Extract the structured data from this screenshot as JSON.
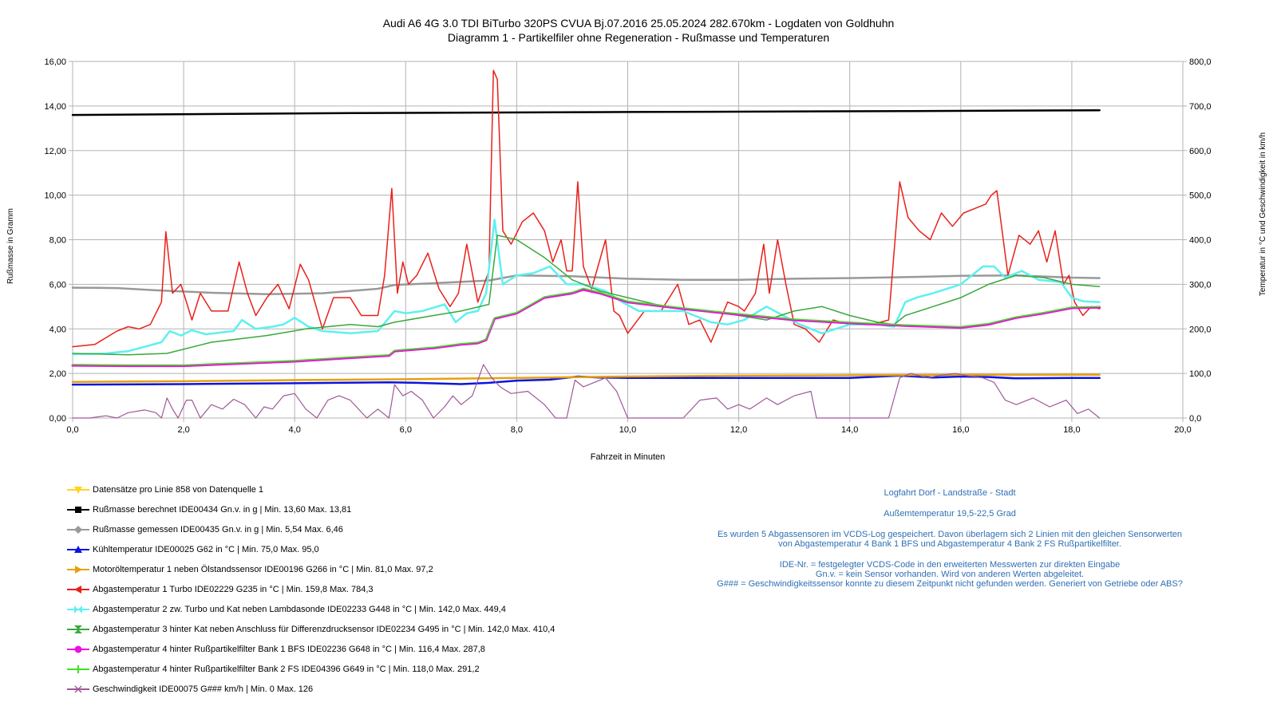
{
  "title": {
    "line1": "Audi A6 4G 3.0 TDI BiTurbo 320PS CVUA Bj.07.2016 25.05.2024 282.670km - Logdaten von Goldhuhn",
    "line2": "Diagramm 1 - Partikelfiler ohne Regeneration - Rußmasse und Temperaturen"
  },
  "legend": [
    {
      "label": "Datensätze pro Linie  858 von Datenquelle 1",
      "color": "#ffd320",
      "marker": "triangle-down"
    },
    {
      "label": "Rußmasse berechnet IDE00434 Gn.v. in g | Min.  13,60 Max.  13,81",
      "color": "#000000",
      "marker": "square"
    },
    {
      "label": "Rußmasse gemessen IDE00435 Gn.v. in g | Min.  5,54 Max.  6,46",
      "color": "#999999",
      "marker": "diamond"
    },
    {
      "label": "Kühltemperatur IDE00025 G62 in °C | Min.  75,0 Max.  95,0",
      "color": "#0a14e0",
      "marker": "triangle-up"
    },
    {
      "label": "Motoröltemperatur 1 neben Ölstandssensor IDE00196 G266 in °C | Min.  81,0 Max.  97,2",
      "color": "#e8a010",
      "marker": "triangle-right"
    },
    {
      "label": "Abgastemperatur 1 Turbo IDE02229 G235 in °C | Min.  159,8 Max.  784,3",
      "color": "#e8201a",
      "marker": "triangle-left"
    },
    {
      "label": "Abgastemperatur 2 zw. Turbo und Kat neben Lambdasonde IDE02233 G448 in °C | Min.  142,0 Max.  449,4",
      "color": "#5ef0f0",
      "marker": "bowtie"
    },
    {
      "label": "Abgastemperatur 3 hinter Kat neben Anschluss für Differenzdrucksensor IDE02234 G495 in °C | Min.  142,0 Max.  410,4",
      "color": "#3aa83a",
      "marker": "hourglass"
    },
    {
      "label": "Abgastemperatur 4 hinter Rußpartikelfilter Bank 1 BFS IDE02236 G648 in °C | Min.  116,4 Max.  287,8",
      "color": "#ee10e0",
      "marker": "circle"
    },
    {
      "label": "Abgastemperatur 4 hinter Rußpartikelfilter Bank 2 FS IDE04396 G649 in °C | Min.  118,0 Max.  291,2",
      "color": "#40e020",
      "marker": "plus"
    },
    {
      "label": "Geschwindigkeit IDE00075 G### km/h | Min.  0 Max.  126",
      "color": "#a05898",
      "marker": "cross"
    }
  ],
  "notes": [
    "Logfahrt Dorf - Landstraße - Stadt",
    "Außemtemperatur 19,5-22,5 Grad",
    "Es wurden 5 Abgassensoren im VCDS-Log gespeichert. Davon überlagern sich 2 Linien mit den gleichen Sensorwerten\nvon Abgastemperatur 4 Bank 1 BFS und Abgastemperatur 4 Bank 2 FS Rußpartikelfilter.",
    "IDE-Nr. = festgelegter VCDS-Code in den erweiterten Messwerten zur direkten Eingabe\nGn.v. = kein Sensor vorhanden. Wird von anderen Werten abgeleitet.\nG### = Geschwindigkeitssensor konnte zu diesem Zeitpunkt nicht gefunden werden. Generiert von Getriebe oder ABS?"
  ],
  "chart_data": {
    "type": "line",
    "xlabel": "Fahrzeit in Minuten",
    "ylabel": "Rußmasse in Gramm",
    "y2label": "Temperatur in °C und Geschwindigkeit in km/h",
    "xlim": [
      0,
      20
    ],
    "ylim": [
      0,
      16
    ],
    "y2lim": [
      0,
      800
    ],
    "x_ticks": [
      "0,0",
      "2,0",
      "4,0",
      "6,0",
      "8,0",
      "10,0",
      "12,0",
      "14,0",
      "16,0",
      "18,0",
      "20,0"
    ],
    "y_ticks": [
      "0,00",
      "2,00",
      "4,00",
      "6,00",
      "8,00",
      "10,00",
      "12,00",
      "14,00",
      "16,00"
    ],
    "y2_ticks": [
      "0,0",
      "100,0",
      "200,0",
      "300,0",
      "400,0",
      "500,0",
      "600,0",
      "700,0",
      "800,0"
    ],
    "grid": true,
    "legend_position": "bottom-left",
    "series": [
      {
        "name": "Datensätze pro Linie",
        "axis": "none",
        "color": "#ffd320",
        "x": [],
        "y": []
      },
      {
        "name": "Rußmasse berechnet",
        "axis": "left",
        "color": "#000000",
        "width": 2.5,
        "x": [
          0,
          5,
          10,
          15,
          18.5
        ],
        "y": [
          13.6,
          13.68,
          13.73,
          13.77,
          13.81
        ]
      },
      {
        "name": "Rußmasse gemessen",
        "axis": "left",
        "color": "#999999",
        "width": 2.5,
        "x": [
          0,
          0.8,
          1.5,
          2.5,
          3.5,
          4.5,
          5,
          5.5,
          5.8,
          6.5,
          7.5,
          8,
          9,
          10,
          11,
          12,
          13,
          14,
          15,
          16,
          17,
          18,
          18.5
        ],
        "y": [
          5.85,
          5.83,
          5.73,
          5.62,
          5.56,
          5.6,
          5.7,
          5.8,
          5.97,
          6.05,
          6.17,
          6.4,
          6.36,
          6.25,
          6.2,
          6.2,
          6.25,
          6.28,
          6.32,
          6.38,
          6.4,
          6.3,
          6.28
        ]
      },
      {
        "name": "Kühltemperatur",
        "axis": "right",
        "color": "#0a14e0",
        "width": 2.5,
        "x": [
          0,
          2,
          4,
          5.7,
          6.2,
          7,
          7.5,
          8,
          8.6,
          9.1,
          9.5,
          10,
          11,
          12,
          13,
          14,
          14.9,
          15.5,
          16,
          16.5,
          17,
          18,
          18.5
        ],
        "y": [
          75,
          76,
          78,
          80,
          79,
          76,
          79,
          84,
          86,
          93,
          91,
          90,
          90,
          90,
          90,
          90,
          95,
          91,
          93,
          92,
          89,
          90,
          90
        ]
      },
      {
        "name": "Motoröltemperatur 1",
        "axis": "right",
        "color": "#e8a010",
        "width": 2.5,
        "x": [
          0,
          2,
          4,
          6,
          8,
          10,
          12,
          14,
          16,
          18.5
        ],
        "y": [
          81,
          82.5,
          85,
          87,
          90,
          93,
          95,
          96,
          96.8,
          97.2
        ]
      },
      {
        "name": "Abgastemperatur 1 Turbo",
        "axis": "right",
        "color": "#e8201a",
        "width": 1.5,
        "x": [
          0,
          0.4,
          0.8,
          1.0,
          1.2,
          1.4,
          1.6,
          1.68,
          1.8,
          1.95,
          2.05,
          2.15,
          2.3,
          2.5,
          2.8,
          3.0,
          3.15,
          3.3,
          3.5,
          3.7,
          3.9,
          4.1,
          4.25,
          4.5,
          4.7,
          5.0,
          5.2,
          5.5,
          5.62,
          5.75,
          5.85,
          5.95,
          6.05,
          6.2,
          6.4,
          6.6,
          6.8,
          6.95,
          7.1,
          7.3,
          7.5,
          7.58,
          7.65,
          7.75,
          7.9,
          8.1,
          8.3,
          8.5,
          8.65,
          8.8,
          8.9,
          9.0,
          9.1,
          9.2,
          9.35,
          9.6,
          9.75,
          9.85,
          10.0,
          10.3,
          10.6,
          10.9,
          11.1,
          11.3,
          11.5,
          11.8,
          12.0,
          12.1,
          12.3,
          12.45,
          12.55,
          12.7,
          12.85,
          13.0,
          13.2,
          13.45,
          13.7,
          14.0,
          14.4,
          14.7,
          14.9,
          15.05,
          15.25,
          15.45,
          15.65,
          15.85,
          16.05,
          16.25,
          16.45,
          16.55,
          16.65,
          16.85,
          17.05,
          17.25,
          17.4,
          17.55,
          17.7,
          17.85,
          17.95,
          18.05,
          18.2,
          18.35,
          18.5
        ],
        "y": [
          160,
          165,
          195,
          205,
          200,
          210,
          260,
          418,
          280,
          300,
          260,
          220,
          280,
          240,
          240,
          350,
          280,
          230,
          270,
          300,
          245,
          345,
          310,
          200,
          270,
          270,
          230,
          230,
          320,
          515,
          280,
          350,
          300,
          320,
          370,
          290,
          250,
          280,
          390,
          260,
          330,
          780,
          760,
          420,
          390,
          440,
          460,
          420,
          350,
          400,
          330,
          330,
          530,
          340,
          290,
          400,
          240,
          230,
          190,
          240,
          240,
          300,
          210,
          220,
          170,
          260,
          250,
          240,
          280,
          390,
          280,
          400,
          300,
          210,
          200,
          170,
          220,
          210,
          210,
          220,
          530,
          450,
          420,
          400,
          460,
          430,
          460,
          470,
          480,
          500,
          510,
          320,
          410,
          390,
          420,
          350,
          420,
          300,
          320,
          260,
          230,
          250,
          245
        ]
      },
      {
        "name": "Abgastemperatur 2 zw. Turbo und Kat",
        "axis": "right",
        "color": "#5ef0f0",
        "width": 2.5,
        "x": [
          0,
          0.6,
          1.0,
          1.6,
          1.75,
          1.95,
          2.15,
          2.4,
          2.9,
          3.05,
          3.3,
          3.6,
          3.8,
          4.0,
          4.25,
          4.5,
          5.0,
          5.5,
          5.8,
          6.0,
          6.3,
          6.7,
          6.9,
          7.1,
          7.3,
          7.45,
          7.6,
          7.75,
          8.0,
          8.3,
          8.6,
          8.9,
          9.2,
          9.6,
          9.9,
          10.2,
          10.6,
          11.0,
          11.5,
          11.8,
          12.1,
          12.5,
          12.8,
          13.1,
          13.5,
          14.0,
          14.5,
          14.8,
          15.0,
          15.2,
          15.5,
          16.0,
          16.4,
          16.6,
          16.8,
          17.1,
          17.4,
          17.8,
          18.0,
          18.2,
          18.5
        ],
        "y": [
          143,
          145,
          150,
          170,
          195,
          185,
          197,
          188,
          195,
          220,
          200,
          205,
          210,
          225,
          205,
          195,
          190,
          195,
          240,
          235,
          240,
          255,
          215,
          235,
          240,
          280,
          445,
          300,
          320,
          325,
          340,
          300,
          300,
          285,
          260,
          240,
          240,
          240,
          215,
          210,
          220,
          250,
          230,
          210,
          190,
          210,
          210,
          205,
          260,
          270,
          280,
          300,
          340,
          340,
          315,
          330,
          310,
          305,
          270,
          262,
          260
        ]
      },
      {
        "name": "Abgastemperatur 3 hinter Kat",
        "axis": "right",
        "color": "#3aa83a",
        "width": 1.5,
        "x": [
          0,
          1.0,
          1.7,
          2.5,
          3.5,
          4.2,
          5.0,
          5.5,
          5.8,
          6.5,
          7.0,
          7.5,
          7.65,
          8.0,
          8.5,
          9.0,
          9.5,
          10.0,
          10.5,
          11.0,
          11.5,
          12.0,
          12.5,
          13.0,
          13.5,
          14.0,
          14.5,
          14.8,
          15.0,
          15.5,
          16.0,
          16.5,
          17.0,
          17.5,
          18.0,
          18.5
        ],
        "y": [
          145,
          142,
          145,
          170,
          185,
          200,
          210,
          205,
          215,
          230,
          240,
          255,
          410,
          400,
          360,
          310,
          285,
          270,
          255,
          245,
          240,
          230,
          220,
          240,
          250,
          230,
          215,
          210,
          230,
          250,
          270,
          300,
          320,
          315,
          300,
          295
        ]
      },
      {
        "name": "Abgastemperatur 4 Bank 1 BFS",
        "axis": "right",
        "color": "#ee10e0",
        "width": 3,
        "x": [
          0,
          1.0,
          2.0,
          3.0,
          4.0,
          5.0,
          5.7,
          5.8,
          6.5,
          7.0,
          7.3,
          7.45,
          7.6,
          8.0,
          8.5,
          9.0,
          9.2,
          9.5,
          10.0,
          11.0,
          12.0,
          13.0,
          14.0,
          15.0,
          16.0,
          16.5,
          17.0,
          17.5,
          18.0,
          18.5
        ],
        "y": [
          118,
          117,
          117,
          122,
          127,
          135,
          140,
          150,
          157,
          165,
          168,
          175,
          223,
          235,
          270,
          280,
          288,
          280,
          260,
          245,
          232,
          220,
          213,
          207,
          203,
          210,
          225,
          235,
          247,
          248
        ]
      },
      {
        "name": "Abgastemperatur 4 Bank 2 FS",
        "axis": "right",
        "color": "#40e020",
        "width": 1.5,
        "x": [
          0,
          1.0,
          2.0,
          3.0,
          4.0,
          5.0,
          5.7,
          5.8,
          6.5,
          7.0,
          7.3,
          7.45,
          7.6,
          8.0,
          8.5,
          9.0,
          9.2,
          9.5,
          10.0,
          11.0,
          12.0,
          13.0,
          14.0,
          15.0,
          16.0,
          16.5,
          17.0,
          17.5,
          18.0,
          18.5
        ],
        "y": [
          120,
          119,
          119,
          124,
          129,
          137,
          142,
          152,
          159,
          167,
          170,
          177,
          225,
          237,
          272,
          282,
          291,
          282,
          262,
          247,
          234,
          222,
          215,
          209,
          205,
          212,
          227,
          237,
          249,
          250
        ]
      },
      {
        "name": "Geschwindigkeit",
        "axis": "right",
        "color": "#a05898",
        "width": 1.2,
        "x": [
          0,
          0.3,
          0.6,
          0.8,
          1.0,
          1.3,
          1.5,
          1.6,
          1.7,
          1.8,
          1.9,
          2.05,
          2.15,
          2.3,
          2.5,
          2.7,
          2.9,
          3.1,
          3.3,
          3.45,
          3.6,
          3.8,
          4.0,
          4.2,
          4.4,
          4.6,
          4.8,
          5.0,
          5.3,
          5.5,
          5.7,
          5.8,
          5.95,
          6.1,
          6.3,
          6.5,
          6.7,
          6.85,
          7.0,
          7.2,
          7.4,
          7.55,
          7.7,
          7.9,
          8.2,
          8.5,
          8.7,
          8.9,
          9.05,
          9.2,
          9.4,
          9.6,
          9.8,
          10.0,
          10.5,
          11.0,
          11.3,
          11.6,
          11.8,
          12.0,
          12.2,
          12.5,
          12.7,
          13.0,
          13.3,
          13.4,
          14.0,
          14.7,
          14.9,
          15.1,
          15.4,
          15.6,
          15.9,
          16.1,
          16.4,
          16.6,
          16.8,
          17.0,
          17.3,
          17.6,
          17.9,
          18.1,
          18.3,
          18.5
        ],
        "y": [
          0,
          0,
          5,
          0,
          12,
          18,
          12,
          0,
          45,
          20,
          0,
          40,
          40,
          0,
          30,
          20,
          42,
          30,
          0,
          25,
          20,
          50,
          55,
          20,
          0,
          40,
          50,
          40,
          0,
          20,
          0,
          75,
          50,
          60,
          40,
          0,
          25,
          50,
          30,
          50,
          120,
          90,
          70,
          55,
          60,
          30,
          0,
          0,
          85,
          70,
          80,
          90,
          60,
          0,
          0,
          0,
          40,
          45,
          20,
          30,
          20,
          45,
          30,
          50,
          60,
          0,
          0,
          0,
          90,
          100,
          90,
          95,
          100,
          95,
          90,
          80,
          40,
          30,
          45,
          25,
          40,
          10,
          20,
          0
        ]
      }
    ]
  }
}
